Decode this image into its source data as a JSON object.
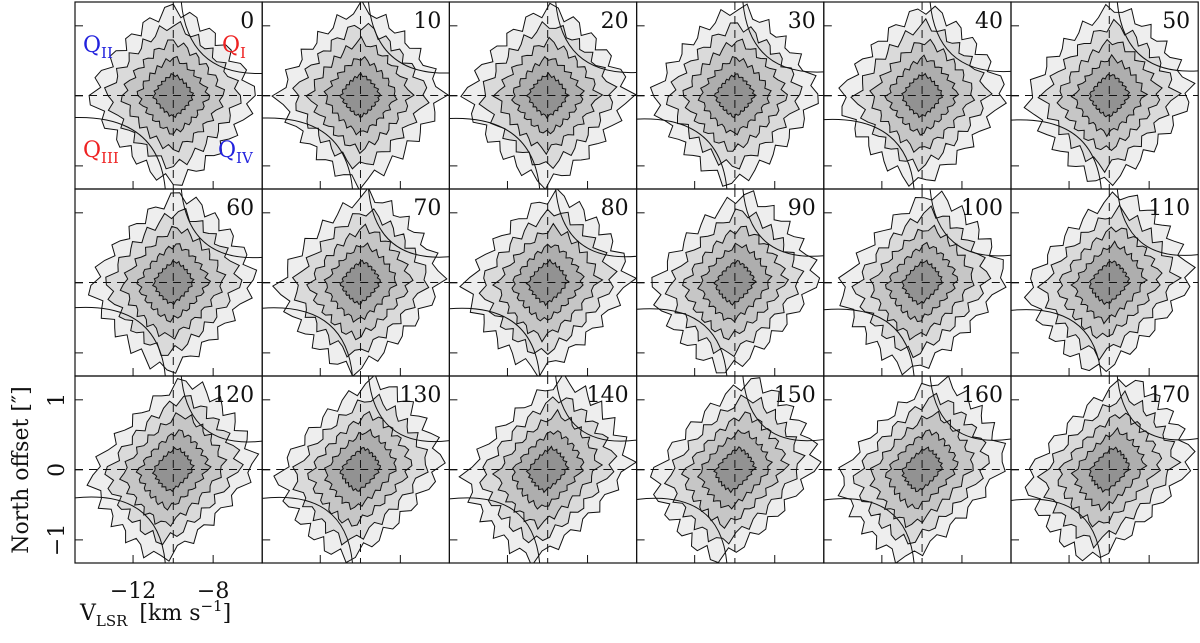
{
  "chart_data": {
    "type": "pv-grid",
    "panels": [
      0,
      10,
      20,
      30,
      40,
      50,
      60,
      70,
      80,
      90,
      100,
      110,
      120,
      130,
      140,
      150,
      160,
      170
    ],
    "quadrants": [
      {
        "q": "Q",
        "sub": "II",
        "color": "#2222dd"
      },
      {
        "q": "Q",
        "sub": "I",
        "color": "#ee2222"
      },
      {
        "q": "Q",
        "sub": "III",
        "color": "#ee2222"
      },
      {
        "q": "Q",
        "sub": "IV",
        "color": "#2222dd"
      }
    ],
    "xlabel": {
      "main": "V",
      "sub": "LSR",
      "unit": "[km s",
      "sup": "−1",
      "close": "]"
    },
    "ylabel": "North offset [″]",
    "xlim": [
      -14.9,
      -5.55
    ],
    "ylim": [
      -1.33,
      1.34
    ],
    "xticks": [
      {
        "value": -12,
        "label": "−12"
      },
      {
        "value": -8,
        "label": "−8"
      }
    ],
    "yticks": [
      1,
      0,
      {
        "value": -1,
        "label": "−1"
      }
    ]
  }
}
